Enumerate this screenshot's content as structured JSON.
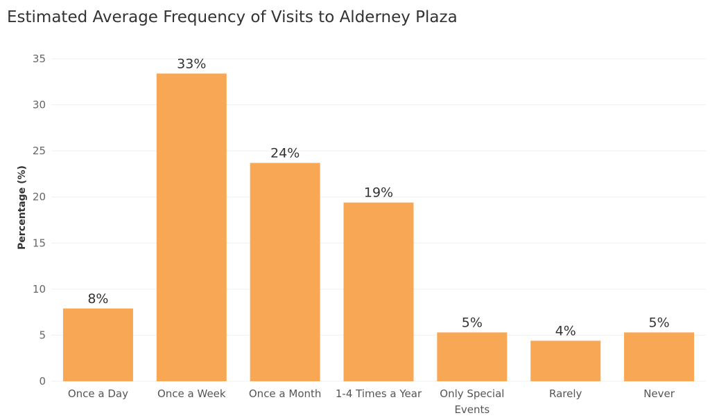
{
  "chart_data": {
    "type": "bar",
    "title": "Estimated Average Frequency of Visits to Alderney Plaza",
    "xlabel": "",
    "ylabel": "Percentage (%)",
    "ylim": [
      0,
      35
    ],
    "yticks": [
      "0",
      "5",
      "10",
      "15",
      "20",
      "25",
      "30",
      "35"
    ],
    "categories": [
      [
        "Once a Day"
      ],
      [
        "Once a Week"
      ],
      [
        "Once a Month"
      ],
      [
        "1-4 Times a Year"
      ],
      [
        "Only Special",
        "Events"
      ],
      [
        "Rarely"
      ],
      [
        "Never"
      ]
    ],
    "values": [
      7.9,
      33.4,
      23.7,
      19.4,
      5.3,
      4.4,
      5.3
    ],
    "data_labels": [
      "8%",
      "33%",
      "24%",
      "19%",
      "5%",
      "4%",
      "5%"
    ],
    "grid": true,
    "bar_color": "#F8A755",
    "grid_color": "#EFEFEF"
  }
}
